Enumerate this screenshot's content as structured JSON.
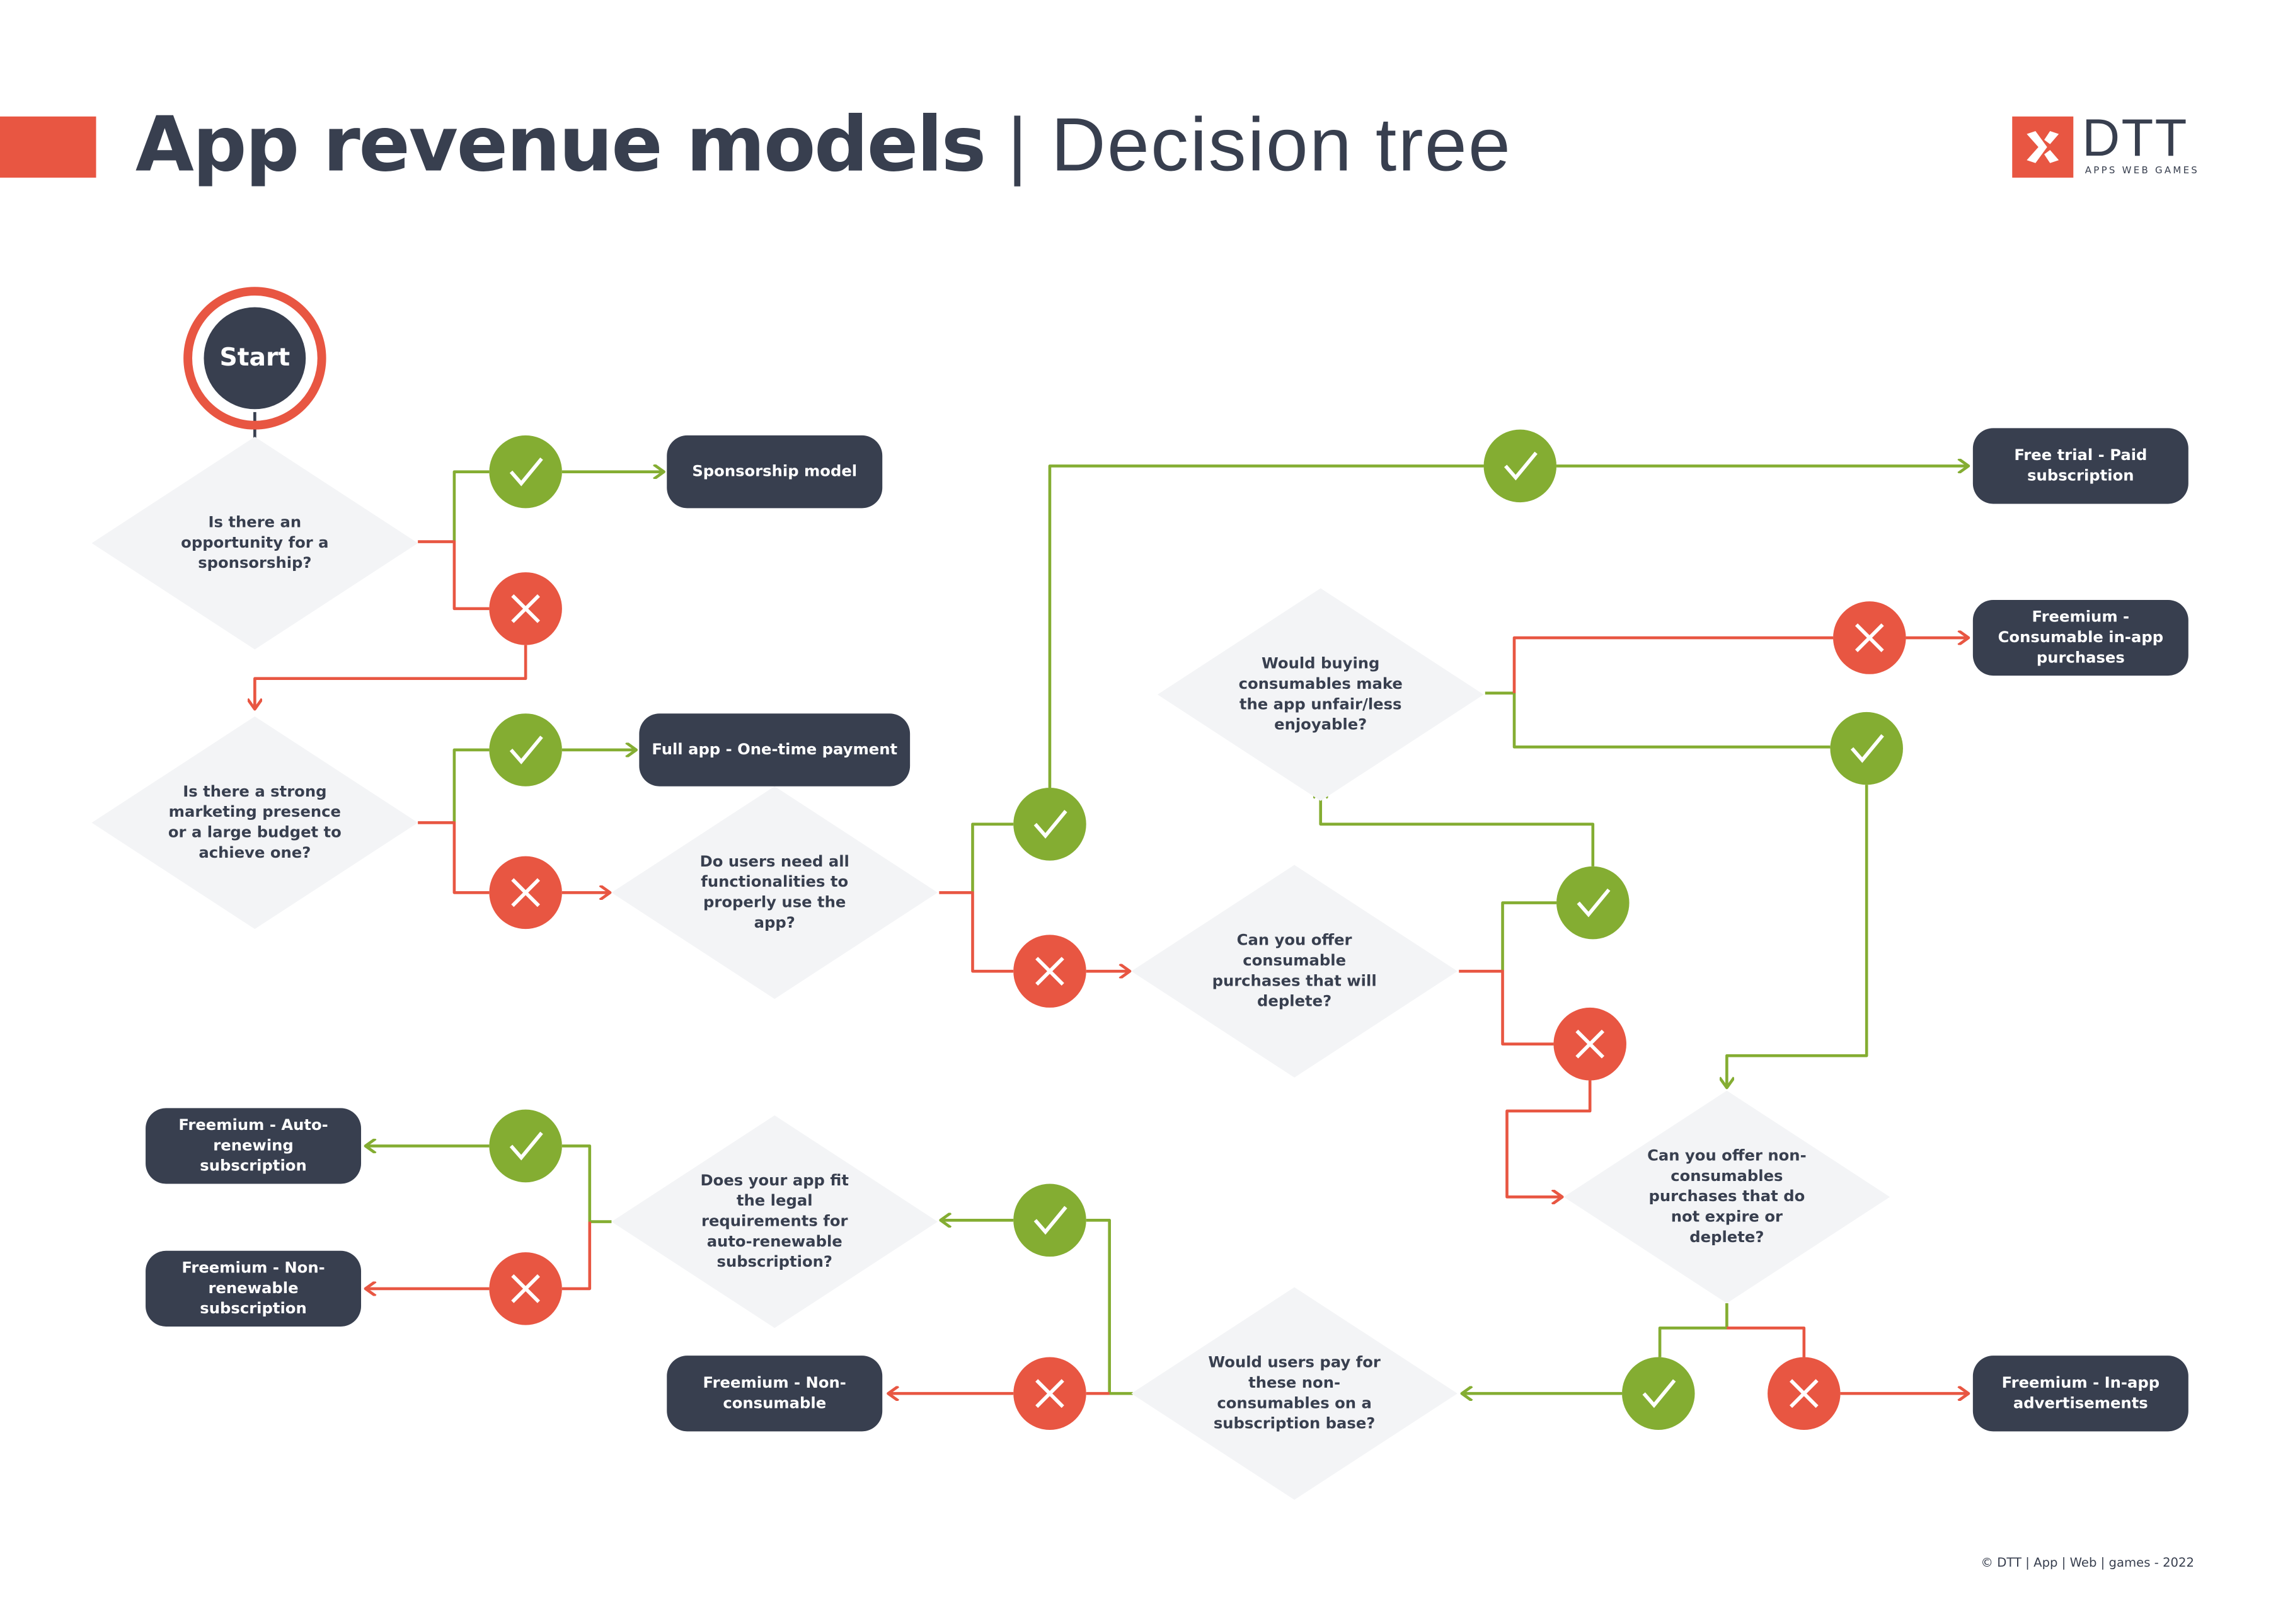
{
  "header": {
    "title_bold": "App revenue models",
    "separator": " | ",
    "title_light": "Decision tree"
  },
  "logo": {
    "name": "DTT",
    "tagline": "APPS WEB GAMES",
    "icon": "dtt-x-logo"
  },
  "colors": {
    "dark": "#383f4f",
    "red": "#e85642",
    "green": "#84ad32",
    "diamond": "#f3f4f6"
  },
  "start": {
    "label": "Start"
  },
  "questions": [
    "Is there an opportunity for a sponsorship?",
    "Is there a strong marketing  presence or a large budget to achieve one?",
    "Do users need all functionalities to properly use the app?",
    "Would buying consumables make the app unfair/less enjoyable?",
    "Can you offer consumable purchases that will deplete?",
    "Can you offer non-consumables purchases that do not expire or deplete?",
    "Would users pay for these non-consumables on a subscription base?",
    "Does your app fit the legal requirements for auto-renewable subscription?"
  ],
  "outcomes": [
    "Sponsorship model",
    "Full app - One-time payment",
    "Free trial - Paid subscription",
    "Freemium - Consumable in-app purchases",
    "Freemium - Auto-renewing subscription",
    "Freemium - Non-renewable subscription",
    "Freemium - Non-consumable",
    "Freemium - In-app advertisements"
  ],
  "icons": {
    "yes": "check-icon",
    "no": "cross-icon"
  },
  "footer": {
    "copyright": "© DTT | App | Web | games - 2022"
  }
}
